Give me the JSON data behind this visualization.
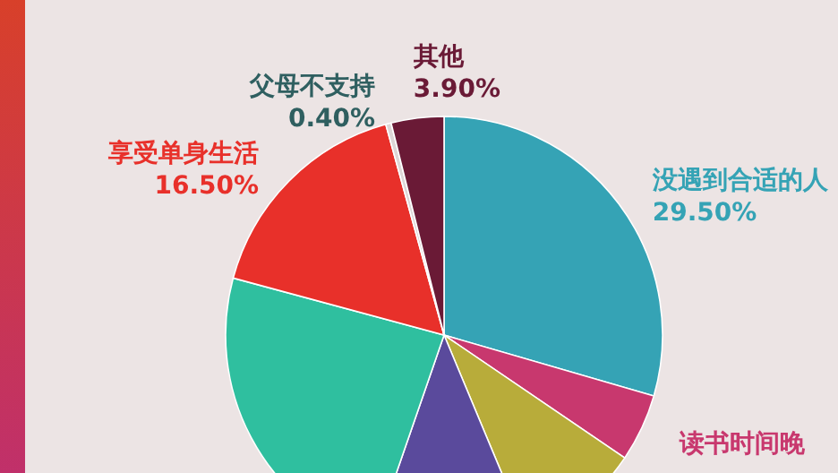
{
  "chart_data": {
    "type": "pie",
    "categories": [
      "没遇到合适的人",
      "读书时间晚",
      null,
      null,
      null,
      "享受单身生活",
      "父母不支持",
      "其他"
    ],
    "values": [
      29.5,
      5.0,
      9.2,
      11.6,
      23.9,
      16.5,
      0.4,
      3.9
    ],
    "value_labels": [
      "29.50%",
      null,
      null,
      null,
      null,
      "16.50%",
      "0.40%",
      "3.90%"
    ],
    "colors": [
      "#35a3b5",
      "#c8386e",
      "#b8ac3a",
      "#5a4a9c",
      "#2fbf9f",
      "#e8302a",
      "#ddd6d6",
      "#6a1a36"
    ]
  }
}
